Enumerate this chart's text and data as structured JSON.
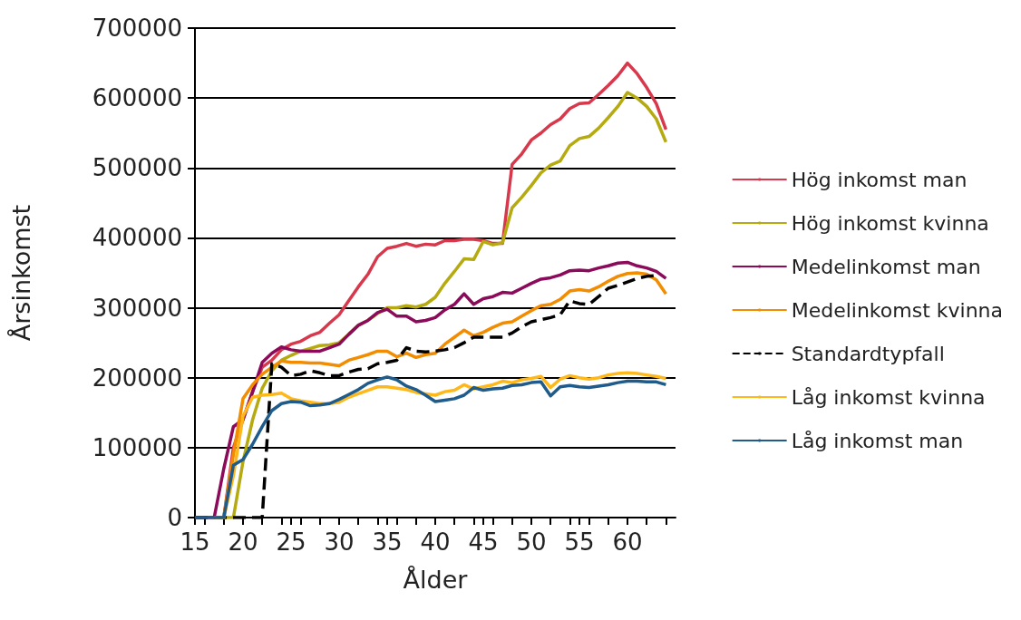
{
  "chart_data": {
    "type": "line",
    "xlabel": "Ålder",
    "ylabel": "Årsinkomst",
    "x": [
      15,
      16,
      17,
      18,
      19,
      20,
      21,
      22,
      23,
      24,
      25,
      26,
      27,
      28,
      29,
      30,
      31,
      32,
      33,
      34,
      35,
      36,
      37,
      38,
      39,
      40,
      41,
      42,
      43,
      44,
      45,
      46,
      47,
      48,
      49,
      50,
      51,
      52,
      53,
      54,
      55,
      56,
      57,
      58,
      59,
      60,
      61,
      62,
      63,
      64
    ],
    "xlim": [
      15,
      65
    ],
    "xticks": [
      15,
      20,
      25,
      30,
      35,
      40,
      45,
      50,
      55,
      60
    ],
    "ylim": [
      0,
      700000
    ],
    "yticks": [
      0,
      100000,
      200000,
      300000,
      400000,
      500000,
      600000,
      700000
    ],
    "grid": "y",
    "legend": "right",
    "marker": "none",
    "series": [
      {
        "name": "Hög inkomst man",
        "color": "#d7384b",
        "values": [
          null,
          null,
          0,
          0,
          100000,
          140000,
          180000,
          215000,
          225000,
          240000,
          248000,
          252000,
          260000,
          265000,
          278000,
          290000,
          310000,
          330000,
          348000,
          373000,
          385000,
          388000,
          392000,
          388000,
          391000,
          390000,
          396000,
          396000,
          398000,
          398000,
          396000,
          392000,
          392000,
          505000,
          520000,
          540000,
          550000,
          562000,
          570000,
          585000,
          592000,
          593000,
          605000,
          618000,
          632000,
          650000,
          635000,
          615000,
          592000,
          555000
        ]
      },
      {
        "name": "Hög inkomst kvinna",
        "color": "#b5aa0f",
        "values": [
          null,
          null,
          0,
          0,
          0,
          80000,
          140000,
          185000,
          210000,
          225000,
          232000,
          238000,
          242000,
          246000,
          247000,
          250000,
          262000,
          275000,
          282000,
          292000,
          300000,
          300000,
          303000,
          301000,
          305000,
          315000,
          335000,
          352000,
          370000,
          369000,
          395000,
          390000,
          393000,
          443000,
          458000,
          475000,
          493000,
          504000,
          510000,
          532000,
          542000,
          545000,
          557000,
          572000,
          588000,
          608000,
          600000,
          588000,
          570000,
          537000
        ]
      },
      {
        "name": "Medelinkomst man",
        "color": "#8b0a5a",
        "values": [
          0,
          0,
          0,
          70000,
          130000,
          140000,
          180000,
          222000,
          235000,
          244000,
          240000,
          238000,
          238000,
          238000,
          243000,
          248000,
          262000,
          275000,
          282000,
          293000,
          298000,
          288000,
          288000,
          280000,
          282000,
          286000,
          297000,
          305000,
          320000,
          305000,
          313000,
          316000,
          322000,
          321000,
          328000,
          335000,
          341000,
          343000,
          347000,
          353000,
          354000,
          353000,
          357000,
          360000,
          364000,
          365000,
          360000,
          357000,
          352000,
          342000
        ]
      },
      {
        "name": "Medelinkomst kvinna",
        "color": "#f28c00",
        "values": [
          null,
          null,
          0,
          0,
          90000,
          170000,
          190000,
          205000,
          215000,
          224000,
          222000,
          222000,
          221000,
          221000,
          219000,
          217000,
          225000,
          229000,
          233000,
          238000,
          238000,
          230000,
          235000,
          229000,
          233000,
          235000,
          248000,
          258000,
          268000,
          260000,
          265000,
          272000,
          278000,
          280000,
          288000,
          296000,
          303000,
          305000,
          312000,
          324000,
          326000,
          324000,
          330000,
          338000,
          345000,
          349000,
          350000,
          348000,
          340000,
          320000
        ]
      },
      {
        "name": "Standardtypfall",
        "color": "#000000",
        "line_style": "dashed",
        "values": [
          0,
          0,
          0,
          0,
          0,
          0,
          0,
          0,
          220000,
          215000,
          203000,
          205000,
          210000,
          207000,
          203000,
          203000,
          208000,
          212000,
          213000,
          220000,
          222000,
          225000,
          243000,
          238000,
          237000,
          238000,
          240000,
          243000,
          250000,
          258000,
          258000,
          258000,
          258000,
          264000,
          273000,
          280000,
          283000,
          286000,
          290000,
          310000,
          306000,
          305000,
          316000,
          328000,
          332000,
          337000,
          342000,
          345000,
          346000,
          null
        ]
      },
      {
        "name": "Låg inkomst kvinna",
        "color": "#ffb81c",
        "values": [
          null,
          null,
          0,
          0,
          60000,
          145000,
          172000,
          175000,
          176000,
          178000,
          170000,
          167000,
          165000,
          163000,
          163000,
          165000,
          172000,
          177000,
          182000,
          187000,
          187000,
          185000,
          183000,
          179000,
          177000,
          175000,
          180000,
          182000,
          190000,
          184000,
          187000,
          190000,
          195000,
          193000,
          197000,
          199000,
          202000,
          186000,
          198000,
          203000,
          200000,
          198000,
          200000,
          204000,
          206000,
          207000,
          206000,
          204000,
          202000,
          199000
        ]
      },
      {
        "name": "Låg inkomst man",
        "color": "#1f5c8c",
        "values": [
          0,
          0,
          0,
          0,
          75000,
          83000,
          105000,
          130000,
          153000,
          163000,
          166000,
          165000,
          160000,
          161000,
          163000,
          169000,
          176000,
          183000,
          192000,
          197000,
          201000,
          197000,
          188000,
          183000,
          175000,
          166000,
          168000,
          170000,
          175000,
          186000,
          182000,
          184000,
          185000,
          189000,
          190000,
          193000,
          194000,
          174000,
          187000,
          189000,
          187000,
          186000,
          188000,
          190000,
          193000,
          195000,
          195000,
          194000,
          194000,
          190000
        ]
      }
    ]
  }
}
